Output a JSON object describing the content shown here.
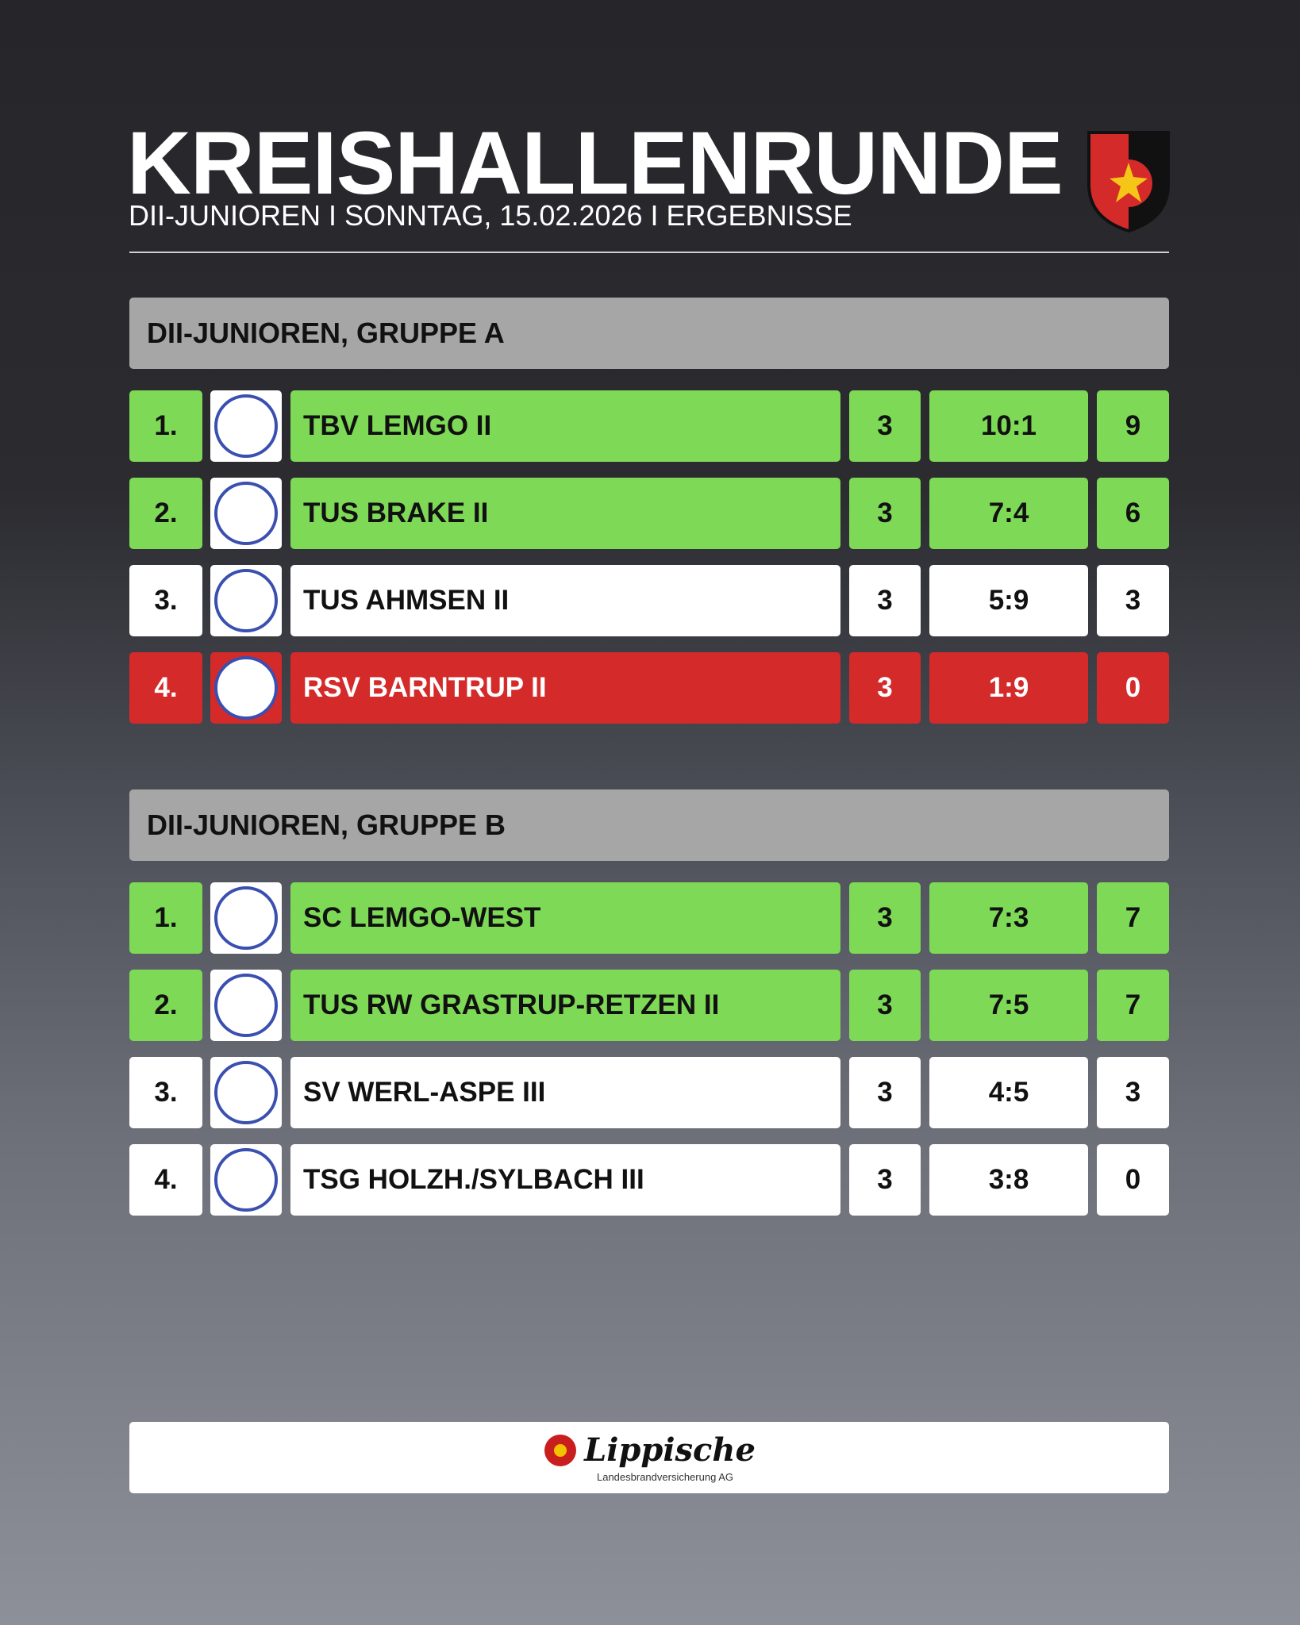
{
  "header": {
    "title": "KREISHALLENRUNDE",
    "subtitle": "DII-JUNIOREN I SONNTAG, 15.02.2026 I ERGEBNISSE"
  },
  "groups": [
    {
      "title": "DII-JUNIOREN, GRUPPE A",
      "rows": [
        {
          "rank": "1.",
          "team": "TBV LEMGO II",
          "games": "3",
          "goals": "10:1",
          "points": "9",
          "color": "#7ed957"
        },
        {
          "rank": "2.",
          "team": "TUS BRAKE II",
          "games": "3",
          "goals": "7:4",
          "points": "6",
          "color": "#7ed957"
        },
        {
          "rank": "3.",
          "team": "TUS AHMSEN II",
          "games": "3",
          "goals": "5:9",
          "points": "3",
          "color": "#ffffff"
        },
        {
          "rank": "4.",
          "team": "RSV BARNTRUP II",
          "games": "3",
          "goals": "1:9",
          "points": "0",
          "color": "#d42a2a"
        }
      ]
    },
    {
      "title": "DII-JUNIOREN, GRUPPE B",
      "rows": [
        {
          "rank": "1.",
          "team": "SC LEMGO-WEST",
          "games": "3",
          "goals": "7:3",
          "points": "7",
          "color": "#7ed957"
        },
        {
          "rank": "2.",
          "team": "TUS RW GRASTRUP-RETZEN II",
          "games": "3",
          "goals": "7:5",
          "points": "7",
          "color": "#7ed957"
        },
        {
          "rank": "3.",
          "team": "SV WERL-ASPE III",
          "games": "3",
          "goals": "4:5",
          "points": "3",
          "color": "#ffffff"
        },
        {
          "rank": "4.",
          "team": "TSG HOLZH./SYLBACH III",
          "games": "3",
          "goals": "3:8",
          "points": "0",
          "color": "#ffffff"
        }
      ]
    }
  ],
  "sponsor": {
    "name": "Lippische",
    "subline": "Landesbrandversicherung AG"
  }
}
